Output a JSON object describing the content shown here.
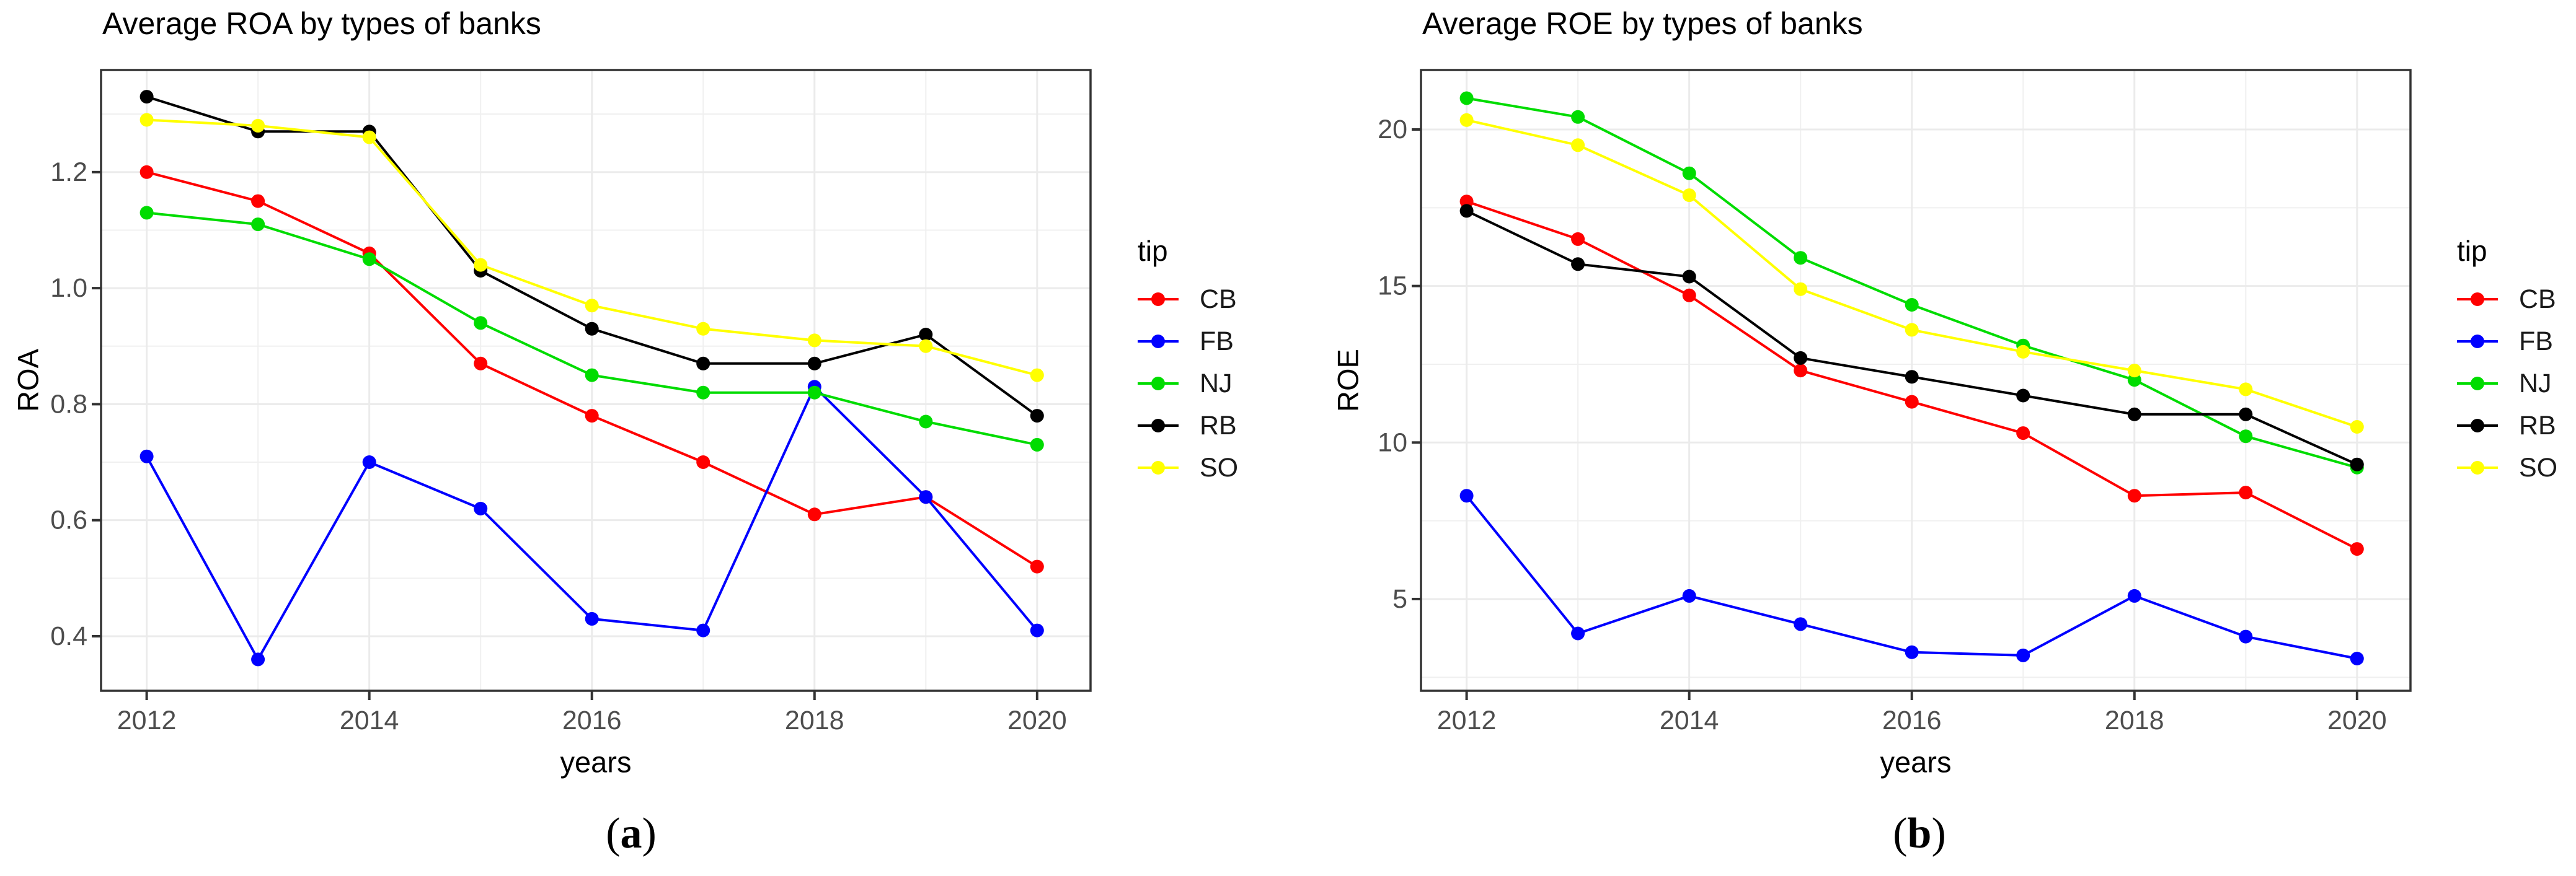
{
  "page": {
    "background": "#FFFFFF"
  },
  "captions": {
    "a": {
      "open": "(",
      "letter": "a",
      "close": ")"
    },
    "b": {
      "open": "(",
      "letter": "b",
      "close": ")"
    }
  },
  "chart_data": [
    {
      "type": "line",
      "title": "Average ROA by types of banks",
      "xlabel": "years",
      "ylabel": "ROA",
      "legend_title": "tip",
      "legend_position": "right",
      "grid": true,
      "x": [
        2012,
        2013,
        2014,
        2015,
        2016,
        2017,
        2018,
        2019,
        2020
      ],
      "x_ticks": [
        2012,
        2014,
        2016,
        2018,
        2020
      ],
      "y_ticks": [
        0.4,
        0.6,
        0.8,
        1.0,
        1.2
      ],
      "xlim": [
        2011.59,
        2020.48
      ],
      "ylim": [
        0.306,
        1.376
      ],
      "series": [
        {
          "name": "CB",
          "color": "#FF0000",
          "values": [
            1.2,
            1.15,
            1.06,
            0.87,
            0.78,
            0.7,
            0.61,
            0.64,
            0.52
          ]
        },
        {
          "name": "FB",
          "color": "#0000FF",
          "values": [
            0.71,
            0.36,
            0.7,
            0.62,
            0.43,
            0.41,
            0.83,
            0.64,
            0.41
          ]
        },
        {
          "name": "NJ",
          "color": "#00DC00",
          "values": [
            1.13,
            1.11,
            1.05,
            0.94,
            0.85,
            0.82,
            0.82,
            0.77,
            0.73
          ]
        },
        {
          "name": "RB",
          "color": "#000000",
          "values": [
            1.33,
            1.27,
            1.27,
            1.03,
            0.93,
            0.87,
            0.87,
            0.92,
            0.78
          ]
        },
        {
          "name": "SO",
          "color": "#FFFF00",
          "values": [
            1.29,
            1.28,
            1.26,
            1.04,
            0.97,
            0.93,
            0.91,
            0.9,
            0.85
          ]
        }
      ]
    },
    {
      "type": "line",
      "title": "Average ROE by types of banks",
      "xlabel": "years",
      "ylabel": "ROE",
      "legend_title": "tip",
      "legend_position": "right",
      "grid": true,
      "x": [
        2012,
        2013,
        2014,
        2015,
        2016,
        2017,
        2018,
        2019,
        2020
      ],
      "x_ticks": [
        2012,
        2014,
        2016,
        2018,
        2020
      ],
      "y_ticks": [
        5,
        10,
        15,
        20
      ],
      "xlim": [
        2011.59,
        2020.48
      ],
      "ylim": [
        2.07,
        21.9
      ],
      "series": [
        {
          "name": "CB",
          "color": "#FF0000",
          "values": [
            17.7,
            16.5,
            14.7,
            12.3,
            11.3,
            10.3,
            8.3,
            8.4,
            6.6
          ]
        },
        {
          "name": "FB",
          "color": "#0000FF",
          "values": [
            8.3,
            3.9,
            5.1,
            4.2,
            3.3,
            3.2,
            5.1,
            3.8,
            3.1
          ]
        },
        {
          "name": "NJ",
          "color": "#00DC00",
          "values": [
            21.0,
            20.4,
            18.6,
            15.9,
            14.4,
            13.1,
            12.0,
            10.2,
            9.2
          ]
        },
        {
          "name": "RB",
          "color": "#000000",
          "values": [
            17.4,
            15.7,
            15.3,
            12.7,
            12.1,
            11.5,
            10.9,
            10.9,
            9.3
          ]
        },
        {
          "name": "SO",
          "color": "#FFFF00",
          "values": [
            20.3,
            19.5,
            17.9,
            14.9,
            13.6,
            12.9,
            12.3,
            11.7,
            10.5
          ]
        }
      ]
    }
  ]
}
